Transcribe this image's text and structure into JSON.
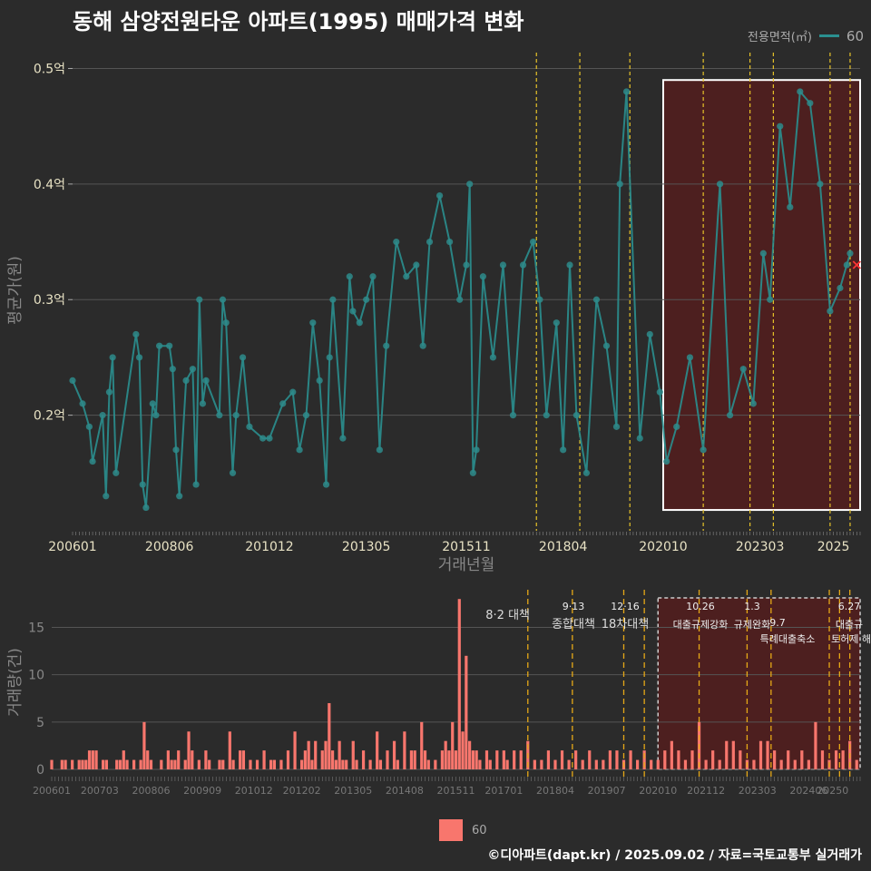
{
  "title": "동해 삼양전원타운 아파트(1995) 매매가격 변화",
  "caption": "©디아파트(dapt.kr) / 2025.09.02 / 자료=국토교통부 실거래가",
  "colors": {
    "background": "#2b2b2b",
    "grid": "#555555",
    "line": "#2a8f8f",
    "point": "#2e8b8b",
    "bar": "#f8766d",
    "event_line": "#e6c229",
    "highlight_fill": "#5a1c1c",
    "highlight_stroke": "#ffffff",
    "marker": "#ff3333",
    "axis_text": "#e8e2c4",
    "axis_title": "#888888"
  },
  "legend_top": {
    "title": "전용면적(㎡)",
    "label": "60"
  },
  "legend_bottom": {
    "label": "60"
  },
  "chart_data": [
    {
      "type": "line",
      "title": "동해 삼양전원타운 아파트(1995) 매매가격 변화",
      "xlabel": "거래년월",
      "ylabel": "평균가(원)",
      "x_ticks": [
        "200601",
        "200806",
        "201012",
        "201305",
        "201511",
        "201804",
        "202010",
        "202303",
        "2025"
      ],
      "y_ticks": [
        {
          "value": 0.2,
          "label": "0.2억"
        },
        {
          "value": 0.3,
          "label": "0.3억"
        },
        {
          "value": 0.4,
          "label": "0.4억"
        },
        {
          "value": 0.5,
          "label": "0.5억"
        }
      ],
      "ylim": [
        0.1,
        0.52
      ],
      "xlim": [
        "2006-01",
        "2025-09"
      ],
      "series": [
        {
          "name": "60",
          "points": [
            [
              "2006-01",
              0.23
            ],
            [
              "2006-04",
              0.21
            ],
            [
              "2006-06",
              0.19
            ],
            [
              "2006-07",
              0.16
            ],
            [
              "2006-10",
              0.2
            ],
            [
              "2006-11",
              0.13
            ],
            [
              "2006-12",
              0.22
            ],
            [
              "2007-01",
              0.25
            ],
            [
              "2007-02",
              0.15
            ],
            [
              "2007-08",
              0.27
            ],
            [
              "2007-09",
              0.25
            ],
            [
              "2007-10",
              0.14
            ],
            [
              "2007-11",
              0.12
            ],
            [
              "2008-01",
              0.21
            ],
            [
              "2008-02",
              0.2
            ],
            [
              "2008-03",
              0.26
            ],
            [
              "2008-06",
              0.26
            ],
            [
              "2008-07",
              0.24
            ],
            [
              "2008-08",
              0.17
            ],
            [
              "2008-09",
              0.13
            ],
            [
              "2008-11",
              0.23
            ],
            [
              "2009-01",
              0.24
            ],
            [
              "2009-02",
              0.14
            ],
            [
              "2009-03",
              0.3
            ],
            [
              "2009-04",
              0.21
            ],
            [
              "2009-05",
              0.23
            ],
            [
              "2009-09",
              0.2
            ],
            [
              "2009-10",
              0.3
            ],
            [
              "2009-11",
              0.28
            ],
            [
              "2010-01",
              0.15
            ],
            [
              "2010-02",
              0.2
            ],
            [
              "2010-04",
              0.25
            ],
            [
              "2010-06",
              0.19
            ],
            [
              "2010-10",
              0.18
            ],
            [
              "2010-12",
              0.18
            ],
            [
              "2011-04",
              0.21
            ],
            [
              "2011-07",
              0.22
            ],
            [
              "2011-09",
              0.17
            ],
            [
              "2011-11",
              0.2
            ],
            [
              "2012-01",
              0.28
            ],
            [
              "2012-03",
              0.23
            ],
            [
              "2012-05",
              0.14
            ],
            [
              "2012-06",
              0.25
            ],
            [
              "2012-07",
              0.3
            ],
            [
              "2012-10",
              0.18
            ],
            [
              "2012-12",
              0.32
            ],
            [
              "2013-01",
              0.29
            ],
            [
              "2013-03",
              0.28
            ],
            [
              "2013-05",
              0.3
            ],
            [
              "2013-07",
              0.32
            ],
            [
              "2013-09",
              0.17
            ],
            [
              "2013-11",
              0.26
            ],
            [
              "2014-02",
              0.35
            ],
            [
              "2014-05",
              0.32
            ],
            [
              "2014-08",
              0.33
            ],
            [
              "2014-10",
              0.26
            ],
            [
              "2014-12",
              0.35
            ],
            [
              "2015-03",
              0.39
            ],
            [
              "2015-06",
              0.35
            ],
            [
              "2015-09",
              0.3
            ],
            [
              "2015-11",
              0.33
            ],
            [
              "2015-12",
              0.4
            ],
            [
              "2016-01",
              0.15
            ],
            [
              "2016-02",
              0.17
            ],
            [
              "2016-04",
              0.32
            ],
            [
              "2016-07",
              0.25
            ],
            [
              "2016-10",
              0.33
            ],
            [
              "2017-01",
              0.2
            ],
            [
              "2017-04",
              0.33
            ],
            [
              "2017-07",
              0.35
            ],
            [
              "2017-09",
              0.3
            ],
            [
              "2017-11",
              0.2
            ],
            [
              "2018-02",
              0.28
            ],
            [
              "2018-04",
              0.17
            ],
            [
              "2018-06",
              0.33
            ],
            [
              "2018-08",
              0.2
            ],
            [
              "2018-11",
              0.15
            ],
            [
              "2019-02",
              0.3
            ],
            [
              "2019-05",
              0.26
            ],
            [
              "2019-08",
              0.19
            ],
            [
              "2019-09",
              0.4
            ],
            [
              "2019-11",
              0.48
            ],
            [
              "2020-03",
              0.18
            ],
            [
              "2020-06",
              0.27
            ],
            [
              "2020-09",
              0.22
            ],
            [
              "2020-11",
              0.16
            ],
            [
              "2021-02",
              0.19
            ],
            [
              "2021-06",
              0.25
            ],
            [
              "2021-10",
              0.17
            ],
            [
              "2022-03",
              0.4
            ],
            [
              "2022-06",
              0.2
            ],
            [
              "2022-10",
              0.24
            ],
            [
              "2023-01",
              0.21
            ],
            [
              "2023-04",
              0.34
            ],
            [
              "2023-06",
              0.3
            ],
            [
              "2023-09",
              0.45
            ],
            [
              "2023-12",
              0.38
            ],
            [
              "2024-03",
              0.48
            ],
            [
              "2024-06",
              0.47
            ],
            [
              "2024-09",
              0.4
            ],
            [
              "2024-12",
              0.29
            ],
            [
              "2025-03",
              0.31
            ],
            [
              "2025-05",
              0.33
            ],
            [
              "2025-06",
              0.34
            ]
          ]
        }
      ],
      "event_lines": [
        "2017-08",
        "2018-09",
        "2019-12",
        "2021-10",
        "2022-12",
        "2023-07",
        "2024-12",
        "2025-06"
      ],
      "highlight_range": [
        "2020-10",
        "2025-09"
      ],
      "last_marker": [
        "2025-08",
        0.33
      ],
      "grid": true,
      "legend": "top-right"
    },
    {
      "type": "bar",
      "xlabel": "",
      "ylabel": "거래량(건)",
      "x_ticks": [
        "200601",
        "200703",
        "200806",
        "200909",
        "201012",
        "201202",
        "201305",
        "201408",
        "201511",
        "201701",
        "201804",
        "201907",
        "202010",
        "202112",
        "202303",
        "202406",
        "20250"
      ],
      "y_ticks": [
        0,
        5,
        10,
        15
      ],
      "ylim": [
        0,
        18.5
      ],
      "xlim": [
        "2006-01",
        "2025-09"
      ],
      "series": [
        {
          "name": "60",
          "values_by_month": {
            "2006-01": 1,
            "2006-04": 1,
            "2006-05": 1,
            "2006-07": 1,
            "2006-09": 1,
            "2006-10": 1,
            "2006-11": 1,
            "2006-12": 2,
            "2007-01": 2,
            "2007-02": 2,
            "2007-04": 1,
            "2007-05": 1,
            "2007-08": 1,
            "2007-09": 1,
            "2007-10": 2,
            "2007-11": 1,
            "2008-01": 1,
            "2008-03": 1,
            "2008-04": 5,
            "2008-05": 2,
            "2008-06": 1,
            "2008-09": 1,
            "2008-11": 2,
            "2008-12": 1,
            "2009-01": 1,
            "2009-02": 2,
            "2009-04": 1,
            "2009-05": 4,
            "2009-06": 2,
            "2009-08": 1,
            "2009-10": 2,
            "2009-11": 1,
            "2010-02": 1,
            "2010-03": 1,
            "2010-05": 4,
            "2010-06": 1,
            "2010-08": 2,
            "2010-09": 2,
            "2010-11": 1,
            "2011-01": 1,
            "2011-03": 2,
            "2011-05": 1,
            "2011-06": 1,
            "2011-08": 1,
            "2011-10": 2,
            "2011-12": 4,
            "2012-02": 1,
            "2012-03": 2,
            "2012-04": 3,
            "2012-05": 1,
            "2012-06": 3,
            "2012-08": 2,
            "2012-09": 3,
            "2012-10": 7,
            "2012-11": 2,
            "2012-12": 1,
            "2013-01": 3,
            "2013-02": 1,
            "2013-03": 1,
            "2013-05": 3,
            "2013-06": 1,
            "2013-08": 2,
            "2013-10": 1,
            "2013-12": 4,
            "2014-01": 1,
            "2014-03": 2,
            "2014-05": 3,
            "2014-06": 1,
            "2014-08": 4,
            "2014-10": 2,
            "2014-11": 2,
            "2015-01": 5,
            "2015-02": 2,
            "2015-03": 1,
            "2015-05": 1,
            "2015-07": 2,
            "2015-08": 3,
            "2015-09": 2,
            "2015-10": 5,
            "2015-11": 2,
            "2015-12": 18,
            "2016-01": 4,
            "2016-02": 12,
            "2016-03": 3,
            "2016-04": 2,
            "2016-05": 2,
            "2016-06": 1,
            "2016-08": 2,
            "2016-09": 1,
            "2016-11": 2,
            "2017-01": 2,
            "2017-02": 1,
            "2017-04": 2,
            "2017-06": 2,
            "2017-08": 3,
            "2017-10": 1,
            "2017-12": 1,
            "2018-02": 2,
            "2018-04": 1,
            "2018-06": 2,
            "2018-08": 1,
            "2018-10": 2,
            "2018-12": 1,
            "2019-02": 2,
            "2019-04": 1,
            "2019-06": 1,
            "2019-08": 2,
            "2019-10": 2,
            "2019-12": 1,
            "2020-02": 2,
            "2020-04": 1,
            "2020-06": 2,
            "2020-08": 1,
            "2020-10": 1,
            "2020-12": 2,
            "2021-02": 3,
            "2021-04": 2,
            "2021-06": 1,
            "2021-08": 2,
            "2021-10": 5,
            "2021-12": 1,
            "2022-02": 2,
            "2022-04": 1,
            "2022-06": 3,
            "2022-08": 3,
            "2022-10": 2,
            "2022-12": 1,
            "2023-02": 1,
            "2023-04": 3,
            "2023-06": 3,
            "2023-08": 2,
            "2023-10": 1,
            "2023-12": 2,
            "2024-02": 1,
            "2024-04": 2,
            "2024-06": 1,
            "2024-08": 5,
            "2024-10": 2,
            "2024-12": 1,
            "2025-02": 2,
            "2025-04": 2,
            "2025-06": 3,
            "2025-08": 1
          }
        }
      ],
      "event_lines": [
        "2017-08",
        "2018-09",
        "2019-12",
        "2020-06",
        "2021-10",
        "2022-12",
        "2023-07",
        "2024-12",
        "2025-03",
        "2025-06"
      ],
      "highlight_range": [
        "2020-10",
        "2025-09"
      ],
      "grid": true,
      "legend": "bottom"
    }
  ],
  "policy_labels": [
    {
      "date": "8·2 대책",
      "text": "8·2 대책"
    },
    {
      "date": "9·13",
      "text": "종합대책"
    },
    {
      "date": "12·16",
      "text": "18차대책"
    },
    {
      "date": "10.26",
      "text": "대출규제강화"
    },
    {
      "date": "1.3",
      "text": "규제완화"
    },
    {
      "date": "9.7",
      "text": "특례대출축소"
    },
    {
      "date": "토허제 해제",
      "text": "토허제 해제"
    },
    {
      "date": "6.27",
      "text": "대출규"
    }
  ]
}
